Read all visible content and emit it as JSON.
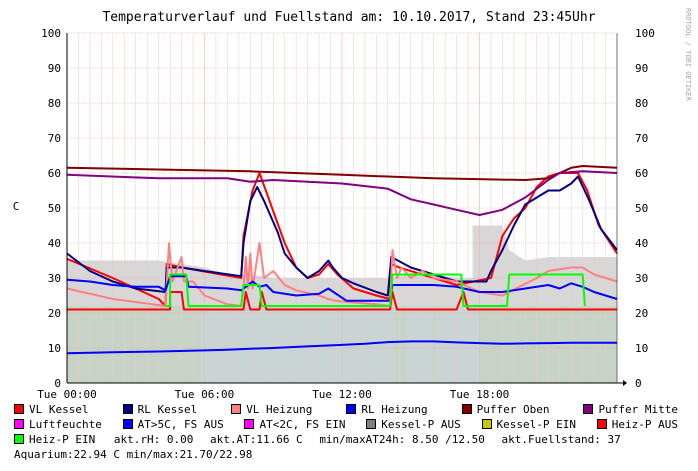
{
  "chart_data": {
    "type": "line",
    "title": "Temperaturverlauf und Fuellstand am: 10.10.2017, Stand 23:45Uhr",
    "ylabel": "C",
    "ylim": [
      0,
      100
    ],
    "yticks": [
      0,
      10,
      20,
      30,
      40,
      50,
      60,
      70,
      80,
      90,
      100
    ],
    "xlim_hours": [
      0,
      24
    ],
    "xticks": [
      {
        "h": 0,
        "label": "Tue 00:00"
      },
      {
        "h": 6,
        "label": "Tue 06:00"
      },
      {
        "h": 12,
        "label": "Tue 12:00"
      },
      {
        "h": 18,
        "label": "Tue 18:00"
      }
    ],
    "watermark": "RRDTOOL / TOBI OETIKER",
    "grid": true,
    "series": [
      {
        "name": "VL Kessel",
        "color": "#ff0000",
        "points": [
          [
            0,
            35.5
          ],
          [
            2,
            30
          ],
          [
            4,
            24
          ],
          [
            4.3,
            22
          ],
          [
            4.35,
            34
          ],
          [
            5,
            33
          ],
          [
            7.6,
            30
          ],
          [
            7.7,
            42
          ],
          [
            8.1,
            55
          ],
          [
            8.4,
            60
          ],
          [
            9.5,
            40
          ],
          [
            10,
            33
          ],
          [
            10.5,
            30
          ],
          [
            11,
            31
          ],
          [
            11.4,
            34
          ],
          [
            11.8,
            31
          ],
          [
            12.5,
            27
          ],
          [
            13.5,
            25
          ],
          [
            14.1,
            24
          ],
          [
            14.15,
            34
          ],
          [
            14.5,
            33
          ],
          [
            16,
            30
          ],
          [
            17,
            28
          ],
          [
            18.5,
            30
          ],
          [
            19,
            42
          ],
          [
            19.5,
            47
          ],
          [
            20,
            50
          ],
          [
            20.5,
            56
          ],
          [
            21,
            59
          ],
          [
            21.5,
            60
          ],
          [
            22.3,
            60
          ],
          [
            22.7,
            55
          ],
          [
            23.2,
            45
          ],
          [
            24,
            37
          ]
        ]
      },
      {
        "name": "RL Kessel",
        "color": "#000080",
        "points": [
          [
            0,
            37
          ],
          [
            1,
            32
          ],
          [
            2,
            29
          ],
          [
            3,
            27
          ],
          [
            4.3,
            26
          ],
          [
            4.35,
            33
          ],
          [
            5,
            33
          ],
          [
            6,
            32
          ],
          [
            7.6,
            30.5
          ],
          [
            7.7,
            40
          ],
          [
            8,
            52
          ],
          [
            8.3,
            56
          ],
          [
            8.6,
            52
          ],
          [
            9.2,
            43
          ],
          [
            9.5,
            37
          ],
          [
            10,
            33
          ],
          [
            10.5,
            30
          ],
          [
            11,
            32
          ],
          [
            11.4,
            35
          ],
          [
            11.6,
            33
          ],
          [
            12,
            30
          ],
          [
            12.5,
            28.5
          ],
          [
            13.5,
            26
          ],
          [
            14,
            25
          ],
          [
            14.15,
            36
          ],
          [
            15,
            33
          ],
          [
            16,
            31
          ],
          [
            17,
            29
          ],
          [
            18.3,
            29
          ],
          [
            18.5,
            32
          ],
          [
            19,
            38
          ],
          [
            19.5,
            45
          ],
          [
            20,
            51
          ],
          [
            20.5,
            53
          ],
          [
            21,
            55
          ],
          [
            21.5,
            55
          ],
          [
            22,
            57
          ],
          [
            22.3,
            59
          ],
          [
            22.8,
            52
          ],
          [
            23.3,
            44
          ],
          [
            24,
            38
          ]
        ]
      },
      {
        "name": "VL Heizung",
        "color": "#ff8080",
        "points": [
          [
            0,
            27
          ],
          [
            2,
            24
          ],
          [
            4.3,
            22
          ],
          [
            4.45,
            40
          ],
          [
            4.6,
            29
          ],
          [
            5,
            36
          ],
          [
            5.1,
            29
          ],
          [
            5.5,
            29
          ],
          [
            6,
            25
          ],
          [
            7,
            22.5
          ],
          [
            7.6,
            22
          ],
          [
            7.7,
            27
          ],
          [
            7.8,
            36
          ],
          [
            7.9,
            27
          ],
          [
            8,
            37
          ],
          [
            8.1,
            27
          ],
          [
            8.4,
            40
          ],
          [
            8.6,
            30
          ],
          [
            9,
            32
          ],
          [
            9.5,
            28
          ],
          [
            10,
            26.5
          ],
          [
            11,
            25
          ],
          [
            11.4,
            24
          ],
          [
            11.7,
            23.5
          ],
          [
            12.5,
            23
          ],
          [
            13.5,
            22.5
          ],
          [
            14.1,
            22
          ],
          [
            14.2,
            38
          ],
          [
            14.4,
            30
          ],
          [
            14.6,
            33
          ],
          [
            15,
            30
          ],
          [
            15.5,
            32
          ],
          [
            16,
            30
          ],
          [
            17,
            29
          ],
          [
            18,
            26
          ],
          [
            19,
            25
          ],
          [
            20.5,
            30
          ],
          [
            21,
            32
          ],
          [
            22,
            33
          ],
          [
            22.5,
            33
          ],
          [
            23,
            31
          ],
          [
            24,
            29
          ]
        ]
      },
      {
        "name": "RL Heizung",
        "color": "#0000ff",
        "points": [
          [
            0,
            29.5
          ],
          [
            1,
            29
          ],
          [
            2,
            28
          ],
          [
            3,
            27.5
          ],
          [
            4,
            27.5
          ],
          [
            4.3,
            26.5
          ],
          [
            4.5,
            30.5
          ],
          [
            5.2,
            30.5
          ],
          [
            5.3,
            27.5
          ],
          [
            7,
            27
          ],
          [
            7.6,
            26.5
          ],
          [
            7.8,
            27.5
          ],
          [
            8.1,
            29
          ],
          [
            8.4,
            27.5
          ],
          [
            8.7,
            28
          ],
          [
            9,
            26
          ],
          [
            10,
            25
          ],
          [
            11,
            25.5
          ],
          [
            11.4,
            27
          ],
          [
            12.2,
            23.5
          ],
          [
            14.1,
            23.5
          ],
          [
            14.2,
            28
          ],
          [
            15,
            28
          ],
          [
            16,
            28
          ],
          [
            17,
            27.5
          ],
          [
            18,
            26
          ],
          [
            19,
            26
          ],
          [
            20,
            27
          ],
          [
            20.5,
            27.5
          ],
          [
            21,
            28
          ],
          [
            21.5,
            27
          ],
          [
            22,
            28.5
          ],
          [
            22.5,
            27.5
          ],
          [
            23,
            26
          ],
          [
            24,
            24
          ]
        ]
      },
      {
        "name": "Puffer Oben",
        "color": "#800000",
        "points": [
          [
            0,
            61.5
          ],
          [
            4,
            61
          ],
          [
            8,
            60.5
          ],
          [
            12,
            59.5
          ],
          [
            16,
            58.5
          ],
          [
            20,
            58
          ],
          [
            21,
            58.5
          ],
          [
            21.5,
            60
          ],
          [
            22,
            61.5
          ],
          [
            22.5,
            62
          ],
          [
            24,
            61.5
          ]
        ]
      },
      {
        "name": "Puffer Mitte",
        "color": "#800080",
        "points": [
          [
            0,
            59.5
          ],
          [
            4,
            58.5
          ],
          [
            7,
            58.5
          ],
          [
            8,
            57.5
          ],
          [
            9,
            58
          ],
          [
            12,
            57
          ],
          [
            14,
            55.5
          ],
          [
            15,
            52.5
          ],
          [
            16,
            51
          ],
          [
            17,
            49.5
          ],
          [
            18,
            48
          ],
          [
            19,
            49.5
          ],
          [
            20,
            53
          ],
          [
            21,
            58
          ],
          [
            21.5,
            60
          ],
          [
            22.5,
            60.5
          ],
          [
            24,
            60
          ]
        ]
      },
      {
        "name": "Luftfeuchte",
        "color": "#ff00ff",
        "points": []
      },
      {
        "name": "AT>5C, FS AUS",
        "color": "#0000ff",
        "points": [
          [
            0,
            8.5
          ],
          [
            2,
            8.8
          ],
          [
            4,
            9
          ],
          [
            6,
            9.3
          ],
          [
            7,
            9.5
          ],
          [
            8,
            9.8
          ],
          [
            9,
            10
          ],
          [
            10,
            10.3
          ],
          [
            11,
            10.6
          ],
          [
            12,
            10.9
          ],
          [
            13,
            11.2
          ],
          [
            14,
            11.7
          ],
          [
            15,
            11.9
          ],
          [
            16,
            11.9
          ],
          [
            17,
            11.6
          ],
          [
            18,
            11.4
          ],
          [
            19,
            11.2
          ],
          [
            20,
            11.3
          ],
          [
            21,
            11.4
          ],
          [
            22,
            11.5
          ],
          [
            24,
            11.5
          ]
        ]
      },
      {
        "name": "AT<2C, FS EIN",
        "color": "#ff00ff",
        "points": []
      },
      {
        "name": "Kessel-P AUS",
        "color": "#808080",
        "points": []
      },
      {
        "name": "Kessel-P EIN",
        "color": "#c8c800",
        "points": []
      },
      {
        "name": "Heiz-P AUS",
        "color": "#ff0000",
        "points": [
          [
            0,
            21
          ],
          [
            4.3,
            21
          ],
          [
            4.5,
            21
          ],
          [
            4.5,
            26
          ],
          [
            5,
            26
          ],
          [
            5.1,
            21
          ],
          [
            7.7,
            21
          ],
          [
            7.8,
            26
          ],
          [
            8,
            21
          ],
          [
            8.4,
            21
          ],
          [
            8.5,
            26
          ],
          [
            8.7,
            21
          ],
          [
            14.1,
            21
          ],
          [
            14.2,
            26
          ],
          [
            14.4,
            21
          ],
          [
            17,
            21
          ],
          [
            17.3,
            26
          ],
          [
            17.5,
            21
          ],
          [
            24,
            21
          ]
        ]
      },
      {
        "name": "Heiz-P EIN",
        "color": "#00ff00",
        "points": [
          [
            4.3,
            22
          ],
          [
            4.5,
            22
          ],
          [
            4.5,
            31
          ],
          [
            5.2,
            31
          ],
          [
            5.3,
            22
          ],
          [
            7.6,
            22
          ],
          [
            7.7,
            28
          ],
          [
            8.4,
            28
          ],
          [
            8.5,
            22
          ],
          [
            14.1,
            22
          ],
          [
            14.2,
            31
          ],
          [
            17.2,
            31
          ],
          [
            17.3,
            22
          ],
          [
            19.2,
            22
          ],
          [
            19.3,
            31
          ],
          [
            22.5,
            31
          ],
          [
            22.6,
            22
          ]
        ]
      }
    ],
    "areas": [
      {
        "name": "Fuellstand gruen",
        "color": "#90e090",
        "ranges": [
          [
            0,
            5.85
          ],
          [
            14.3,
            14.8
          ],
          [
            15.9,
            16.1
          ],
          [
            18,
            24
          ]
        ],
        "level": 22
      },
      {
        "name": "Fuellstand tuerkis",
        "color": "#a0e8e8",
        "ranges": [
          [
            5.85,
            14.3
          ],
          [
            14.8,
            15.9
          ],
          [
            16.1,
            18
          ]
        ],
        "level": 22
      },
      {
        "name": "Kessel-P grau",
        "color": "#d0d0d0",
        "points": [
          [
            0,
            35
          ],
          [
            4,
            35
          ],
          [
            5,
            34
          ],
          [
            6,
            33
          ],
          [
            7,
            31
          ],
          [
            8,
            31
          ],
          [
            9,
            30
          ],
          [
            10,
            30
          ],
          [
            11,
            30
          ],
          [
            12,
            30
          ],
          [
            13,
            30
          ],
          [
            14,
            30
          ],
          [
            15,
            31
          ],
          [
            16,
            31
          ],
          [
            17,
            30
          ],
          [
            17.7,
            30
          ],
          [
            17.7,
            45
          ],
          [
            19,
            45
          ],
          [
            19.3,
            38
          ],
          [
            20,
            35
          ],
          [
            21,
            36
          ],
          [
            22,
            36
          ],
          [
            23,
            36
          ],
          [
            24,
            36
          ]
        ]
      }
    ]
  },
  "legend": {
    "rows": [
      [
        {
          "label": "VL Kessel",
          "color": "#ff0000"
        },
        {
          "label": "RL Kessel",
          "color": "#000080"
        },
        {
          "label": "VL Heizung",
          "color": "#ff8080"
        },
        {
          "label": "RL Heizung",
          "color": "#0000ff"
        },
        {
          "label": "Puffer Oben",
          "color": "#800000"
        },
        {
          "label": "Puffer Mitte",
          "color": "#800080"
        }
      ],
      [
        {
          "label": "Luftfeuchte",
          "color": "#ff00ff"
        },
        {
          "label": "AT>5C, FS AUS",
          "color": "#0000ff"
        },
        {
          "label": "AT<2C, FS EIN",
          "color": "#ff00ff"
        },
        {
          "label": "Kessel-P AUS",
          "color": "#808080"
        },
        {
          "label": "Kessel-P EIN",
          "color": "#c8c800"
        },
        {
          "label": "Heiz-P AUS",
          "color": "#ff0000"
        }
      ]
    ],
    "row3_item": {
      "label": "Heiz-P EIN",
      "color": "#00ff00"
    },
    "stat_rh": "akt.rH: 0.00",
    "stat_at": "akt.AT:11.66 C",
    "stat_minmax": "min/maxAT24h: 8.50 /12.50",
    "stat_fuell": "akt.Fuellstand:   37",
    "aquarium": "Aquarium:22.94 C  min/max:21.70/22.98"
  }
}
